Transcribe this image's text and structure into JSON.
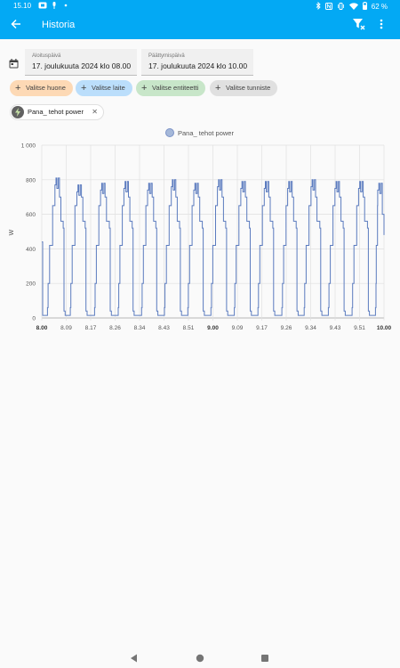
{
  "status_bar": {
    "time": "15.10",
    "battery": "62 %"
  },
  "app_bar": {
    "title": "Historia"
  },
  "start_date": {
    "label": "Aloituspäivä",
    "value": "17. joulukuuta 2024 klo 08.00"
  },
  "end_date": {
    "label": "Päättymispäivä",
    "value": "17. joulukuuta 2024 klo 10.00"
  },
  "chips": [
    {
      "label": "Valitse huone",
      "color": "#fdd9b5"
    },
    {
      "label": "Valitse laite",
      "color": "#bbdefb"
    },
    {
      "label": "Valitse entiteetti",
      "color": "#c8e6c9"
    },
    {
      "label": "Valitse tunniste",
      "color": "#e0e0e0"
    }
  ],
  "selected_entity": {
    "label": "Pana_ tehot power"
  },
  "chart_data": {
    "type": "line",
    "series": [
      {
        "name": "Pana_ tehot power",
        "color": "#5b7bbf"
      }
    ],
    "ylabel": "W",
    "ylim": [
      0,
      1000
    ],
    "yticks": [
      "0",
      "200",
      "400",
      "600",
      "800",
      "1 000"
    ],
    "xticks": [
      "8.00",
      "8.09",
      "8.17",
      "8.26",
      "8.34",
      "8.43",
      "8.51",
      "9.00",
      "9.09",
      "9.17",
      "9.26",
      "9.34",
      "9.43",
      "9.51",
      "10.00"
    ],
    "bold_ticks": [
      "8.00",
      "9.00",
      "10.00"
    ],
    "x_range_minutes": [
      0,
      120
    ],
    "cycles": [
      {
        "rise": 2.0,
        "peak": 5.0,
        "fall": 7.8,
        "max": 810
      },
      {
        "rise": 10.0,
        "peak": 12.7,
        "fall": 15.5,
        "max": 770
      },
      {
        "rise": 18.5,
        "peak": 21.0,
        "fall": 24.0,
        "max": 780
      },
      {
        "rise": 26.8,
        "peak": 29.2,
        "fall": 32.0,
        "max": 790
      },
      {
        "rise": 35.0,
        "peak": 37.5,
        "fall": 40.3,
        "max": 780
      },
      {
        "rise": 43.0,
        "peak": 45.8,
        "fall": 48.6,
        "max": 800
      },
      {
        "rise": 51.2,
        "peak": 53.7,
        "fall": 56.6,
        "max": 780
      },
      {
        "rise": 59.3,
        "peak": 62.0,
        "fall": 64.8,
        "max": 800
      },
      {
        "rise": 67.5,
        "peak": 70.2,
        "fall": 73.1,
        "max": 790
      },
      {
        "rise": 75.8,
        "peak": 78.4,
        "fall": 81.3,
        "max": 790
      },
      {
        "rise": 84.2,
        "peak": 86.6,
        "fall": 89.5,
        "max": 790
      },
      {
        "rise": 92.0,
        "peak": 94.8,
        "fall": 97.8,
        "max": 800
      },
      {
        "rise": 100.5,
        "peak": 103.2,
        "fall": 106.0,
        "max": 790
      },
      {
        "rise": 108.8,
        "peak": 111.5,
        "fall": 114.5,
        "max": 790
      },
      {
        "rise": 117.0,
        "peak": 118.2,
        "fall": 120.0,
        "max": 780
      }
    ],
    "start_value": 440,
    "end_value": 480
  }
}
